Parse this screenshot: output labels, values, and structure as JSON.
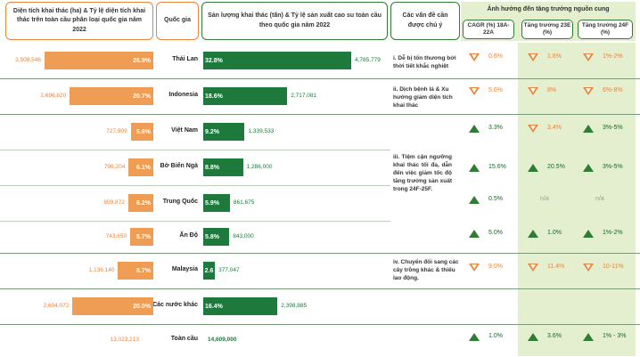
{
  "headers": {
    "area": "Diện tích khai thác (ha) & Tỷ lệ diện tích khai thác trên toàn cầu phân loại quốc gia năm 2022",
    "country": "Quốc gia",
    "production": "Sản lượng khai thác (tấn) & Tỷ lệ sản xuất cao su toàn cầu theo quốc gia năm 2022",
    "issues": "Các vấn đề cần được chú ý",
    "impact": "Ảnh hưởng đến tăng trưởng nguồn cung",
    "cagr": "CAGR (%) 18A-22A",
    "g23": "Tăng trưởng 23E (%)",
    "g24": "Tăng trưởng 24F (%)"
  },
  "issues": [
    "i. Dễ bị tổn thương bởi thời tiết khắc nghiệt",
    "ii. Dịch bệnh lá & Xu hướng giảm diện tích khai thác",
    "iii. Tiệm cận ngưỡng khai thác tối đa, dẫn đến việc giảm tốc độ tăng trưởng sản xuất trong 24F-25F.",
    "iv. Chuyển đổi sang các cây trồng khác & thiếu lao động."
  ],
  "colors": {
    "area_bar": "#ef9d55",
    "production_bar": "#1e7a3c",
    "impact_band": "#e3efcf",
    "up": "#2e7d32",
    "down": "#e8853d"
  },
  "chart_data": {
    "type": "bar",
    "categories": [
      "Thái Lan",
      "Indonesia",
      "Việt Nam",
      "Bờ Biển Ngà",
      "Trung Quốc",
      "Ấn Độ",
      "Malaysia",
      "Các nước khác",
      "Toàn cầu"
    ],
    "series": [
      {
        "name": "Diện tích khai thác (ha)",
        "values": [
          3508546,
          2696820,
          727909,
          796204,
          809872,
          743650,
          1136140,
          2604072,
          13023213
        ],
        "labels": [
          "3,508,546",
          "2,696,820",
          "727,909",
          "796,204",
          "809,872",
          "743,650",
          "1,136,140",
          "2,604,072",
          "13,023,213"
        ],
        "share": [
          "26.9%",
          "20.7%",
          "5.6%",
          "6.1%",
          "6.2%",
          "5.7%",
          "8.7%",
          "20.0%",
          ""
        ]
      },
      {
        "name": "Sản lượng khai thác (tấn)",
        "values": [
          4785779,
          2717081,
          1339533,
          1286000,
          861675,
          843000,
          377047,
          2398885,
          14609000
        ],
        "labels": [
          "4,785,779",
          "2,717,081",
          "1,339,533",
          "1,286,000",
          "861,675",
          "843,000",
          "377,047",
          "2,398,885",
          "14,609,000"
        ],
        "share": [
          "32.8%",
          "18.6%",
          "9.2%",
          "8.8%",
          "5.9%",
          "5.8%",
          "2.6",
          "16.4%",
          ""
        ]
      }
    ],
    "impact": [
      {
        "cagr": "0.6%",
        "cagr_dir": "down",
        "g23": "1.6%",
        "g23_dir": "down",
        "g24": "1%-2%",
        "g24_dir": "down"
      },
      {
        "cagr": "5.6%",
        "cagr_dir": "down",
        "g23": "8%",
        "g23_dir": "down",
        "g24": "6%-8%",
        "g24_dir": "down"
      },
      {
        "cagr": "3.3%",
        "cagr_dir": "up",
        "g23": "3.4%",
        "g23_dir": "down",
        "g24": "3%-5%",
        "g24_dir": "up"
      },
      {
        "cagr": "15.6%",
        "cagr_dir": "up",
        "g23": "20.5%",
        "g23_dir": "up",
        "g24": "3%-5%",
        "g24_dir": "up"
      },
      {
        "cagr": "0.5%",
        "cagr_dir": "up",
        "g23": "n/a",
        "g23_dir": "none",
        "g24": "n/a",
        "g24_dir": "none"
      },
      {
        "cagr": "5.0%",
        "cagr_dir": "up",
        "g23": "1.0%",
        "g23_dir": "up",
        "g24": "1%-2%",
        "g24_dir": "up"
      },
      {
        "cagr": "9.0%",
        "cagr_dir": "down",
        "g23": "11.4%",
        "g23_dir": "down",
        "g24": "10-11%",
        "g24_dir": "down"
      },
      {
        "cagr": "",
        "cagr_dir": "none",
        "g23": "",
        "g23_dir": "none",
        "g24": "",
        "g24_dir": "none"
      },
      {
        "cagr": "1.0%",
        "cagr_dir": "up",
        "g23": "3.6%",
        "g23_dir": "up",
        "g24": "1% - 3%",
        "g24_dir": "up"
      }
    ],
    "xlabel": "",
    "ylabel": ""
  }
}
